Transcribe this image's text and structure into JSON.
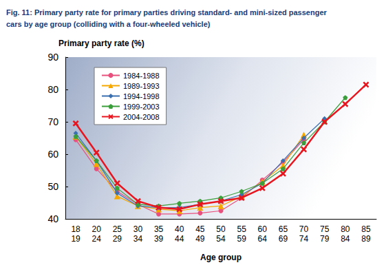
{
  "chart_data": {
    "type": "line",
    "title": "Fig. 11: Primary party rate for primary parties driving standard- and mini-sized passenger\ncars by age group (colliding with a four-wheeled vehicle)",
    "y_label": "Primary party rate (%)",
    "x_label": "Age group",
    "categories": [
      "18\n19",
      "20\n24",
      "25\n29",
      "30\n34",
      "35\n39",
      "40\n44",
      "45\n49",
      "50\n54",
      "55\n59",
      "60\n64",
      "65\n69",
      "70\n74",
      "75\n79",
      "80\n84",
      "85\n89"
    ],
    "series": [
      {
        "name": "1984-1988",
        "color": "#e8507d",
        "marker": "circle",
        "values": [
          64.5,
          55.5,
          48.5,
          44.5,
          41.5,
          41.5,
          41.8,
          42.5,
          46.5,
          52,
          57.5,
          64.5,
          null,
          null,
          null
        ]
      },
      {
        "name": "1989-1993",
        "color": "#f5a800",
        "marker": "triangle",
        "values": [
          65.5,
          57,
          47,
          44,
          43,
          42.5,
          43.5,
          44,
          47,
          51.5,
          56.5,
          66,
          null,
          null,
          null
        ]
      },
      {
        "name": "1994-1998",
        "color": "#3a6fb0",
        "marker": "diamond",
        "values": [
          66.5,
          58,
          48,
          44,
          43.5,
          43.5,
          44.5,
          45.5,
          47.5,
          51,
          58,
          65,
          71,
          null,
          null
        ]
      },
      {
        "name": "1999-2003",
        "color": "#3a9e3a",
        "marker": "pentagon",
        "values": [
          65.5,
          58,
          49.5,
          44.5,
          44,
          44.8,
          45.5,
          46.5,
          48.5,
          51,
          55.5,
          63.5,
          70,
          77.5,
          null
        ]
      },
      {
        "name": "2004-2008",
        "color": "#e8141e",
        "marker": "x",
        "values": [
          69.5,
          60.5,
          51,
          45.5,
          43.5,
          43,
          44.5,
          45.5,
          46.5,
          49.5,
          54,
          61.5,
          70,
          75.5,
          81.5
        ]
      }
    ],
    "ylim": [
      40,
      90
    ],
    "yticks": [
      40,
      50,
      60,
      70,
      80,
      90
    ],
    "grid": false,
    "legend": "upper left"
  }
}
